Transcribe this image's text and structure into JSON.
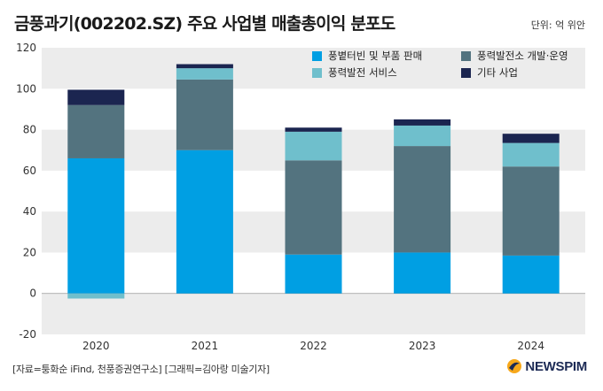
{
  "title": "금풍과기(002202.SZ) 주요 사업별 매출총이익 분포도",
  "unit": "단위: 억 위안",
  "source": "[자료=퉁화순 iFind, 천풍증권연구소] [그래픽=김아랑 미술기자]",
  "logo": "NEWSPIM",
  "chart_data": {
    "type": "bar",
    "stacked": true,
    "categories": [
      "2020",
      "2021",
      "2022",
      "2023",
      "2024"
    ],
    "series": [
      {
        "name": "풍볕터빈 및 부품 판매",
        "color": "#009fe3",
        "values": [
          66,
          70,
          19,
          20,
          18.5
        ]
      },
      {
        "name": "풍력발전소 개발·운영",
        "color": "#53737f",
        "values": [
          26,
          34.5,
          46,
          52,
          43.5
        ]
      },
      {
        "name": "풍력발전 서비스",
        "color": "#6fbfcc",
        "values": [
          -2.5,
          5.5,
          14,
          10,
          11.5
        ]
      },
      {
        "name": "기타 사업",
        "color": "#1b2550",
        "values": [
          7.5,
          2,
          2,
          3,
          4.5
        ]
      }
    ],
    "ylim": [
      -20,
      120
    ],
    "yticks": [
      "-20",
      "0",
      "20",
      "40",
      "60",
      "80",
      "100",
      "120"
    ],
    "legend_position": "top-right",
    "xlabel": "",
    "ylabel": ""
  }
}
